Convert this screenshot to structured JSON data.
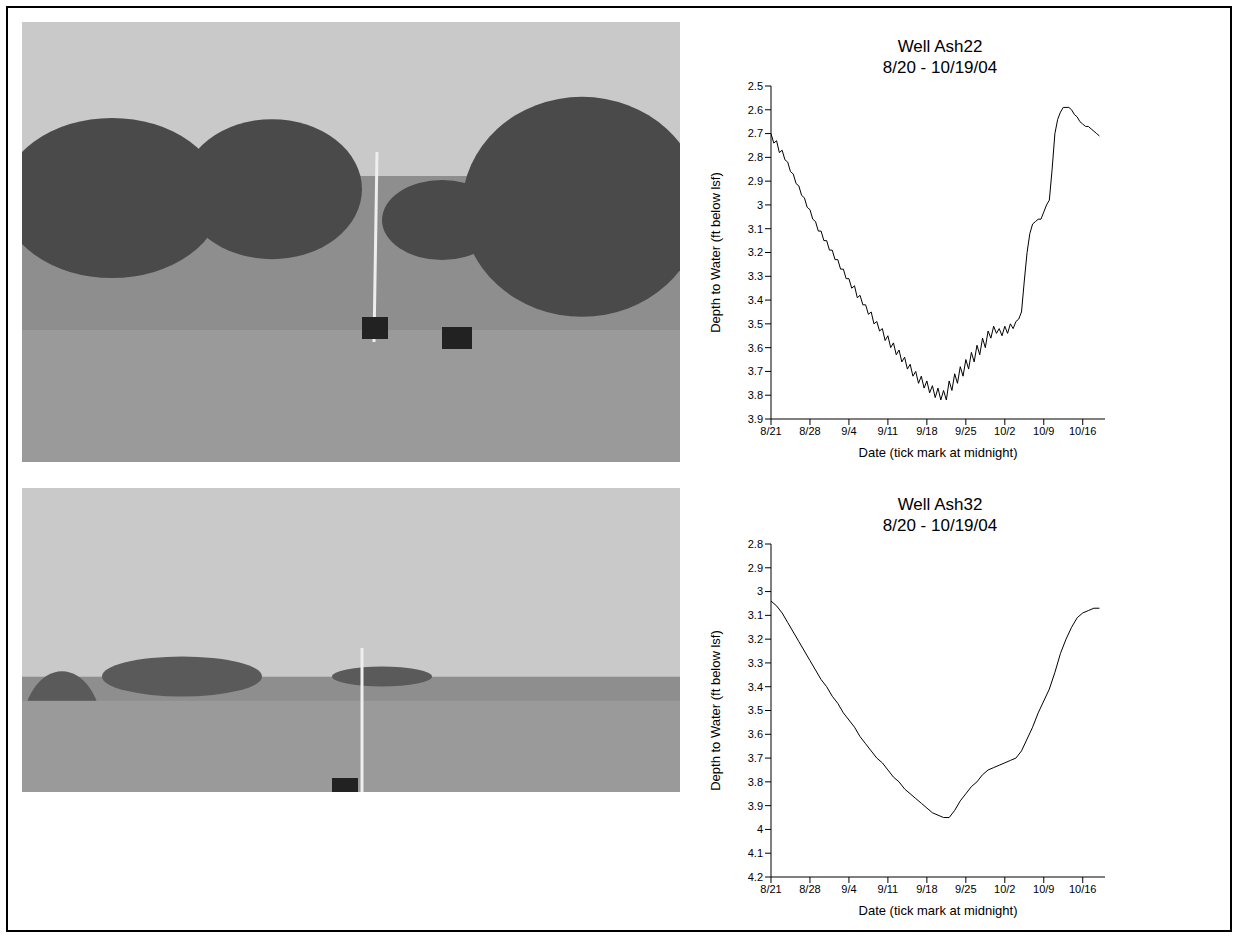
{
  "chart_data": [
    {
      "type": "line",
      "title": "Well Ash22",
      "subtitle": "8/20 - 10/19/04",
      "x_label": "Date (tick mark at midnight)",
      "y_label": "Depth to Water (ft below lsf)",
      "xlim": [
        1,
        61
      ],
      "xticks": [
        {
          "value": 1,
          "label": "8/21"
        },
        {
          "value": 8,
          "label": "8/28"
        },
        {
          "value": 15,
          "label": "9/4"
        },
        {
          "value": 22,
          "label": "9/11"
        },
        {
          "value": 29,
          "label": "9/18"
        },
        {
          "value": 36,
          "label": "9/25"
        },
        {
          "value": 43,
          "label": "10/2"
        },
        {
          "value": 50,
          "label": "10/9"
        },
        {
          "value": 57,
          "label": "10/16"
        }
      ],
      "ylim": [
        3.9,
        2.5
      ],
      "yticks": [
        2.5,
        2.6,
        2.7,
        2.8,
        2.9,
        3,
        3.1,
        3.2,
        3.3,
        3.4,
        3.5,
        3.6,
        3.7,
        3.8,
        3.9
      ],
      "x": [
        1,
        1.5,
        2,
        2.5,
        3,
        3.5,
        4,
        4.5,
        5,
        5.5,
        6,
        6.5,
        7,
        7.5,
        8,
        8.5,
        9,
        9.5,
        10,
        10.5,
        11,
        11.5,
        12,
        12.5,
        13,
        13.5,
        14,
        14.5,
        15,
        15.5,
        16,
        16.5,
        17,
        17.5,
        18,
        18.5,
        19,
        19.5,
        20,
        20.5,
        21,
        21.5,
        22,
        22.5,
        23,
        23.5,
        24,
        24.5,
        25,
        25.5,
        26,
        26.5,
        27,
        27.5,
        28,
        28.5,
        29,
        29.5,
        30,
        30.5,
        31,
        31.5,
        32,
        32.5,
        33,
        33.5,
        34,
        34.5,
        35,
        35.5,
        36,
        36.5,
        37,
        37.5,
        38,
        38.5,
        39,
        39.5,
        40,
        40.5,
        41,
        41.5,
        42,
        42.5,
        43,
        43.5,
        44,
        44.5,
        45,
        45.5,
        46,
        46.5,
        47,
        47.5,
        48,
        48.5,
        49,
        49.5,
        50,
        50.5,
        51,
        51.5,
        52,
        52.5,
        53,
        53.5,
        54,
        54.5,
        55,
        55.5,
        56,
        56.5,
        57,
        57.5,
        58,
        58.5,
        59,
        59.5,
        60
      ],
      "series": [
        {
          "color": "#000000",
          "values": [
            2.7,
            2.74,
            2.73,
            2.78,
            2.77,
            2.81,
            2.82,
            2.86,
            2.87,
            2.91,
            2.92,
            2.96,
            2.97,
            3.01,
            3.02,
            3.06,
            3.07,
            3.11,
            3.11,
            3.15,
            3.15,
            3.19,
            3.19,
            3.23,
            3.23,
            3.27,
            3.27,
            3.31,
            3.31,
            3.35,
            3.34,
            3.39,
            3.38,
            3.42,
            3.42,
            3.46,
            3.45,
            3.5,
            3.49,
            3.53,
            3.52,
            3.57,
            3.55,
            3.6,
            3.58,
            3.63,
            3.61,
            3.66,
            3.64,
            3.69,
            3.67,
            3.72,
            3.7,
            3.75,
            3.72,
            3.77,
            3.74,
            3.79,
            3.76,
            3.81,
            3.77,
            3.82,
            3.78,
            3.82,
            3.74,
            3.78,
            3.71,
            3.75,
            3.68,
            3.72,
            3.65,
            3.69,
            3.62,
            3.66,
            3.59,
            3.63,
            3.56,
            3.6,
            3.53,
            3.56,
            3.51,
            3.54,
            3.52,
            3.55,
            3.51,
            3.54,
            3.5,
            3.52,
            3.49,
            3.48,
            3.45,
            3.32,
            3.2,
            3.12,
            3.08,
            3.07,
            3.06,
            3.06,
            3.03,
            3.0,
            2.98,
            2.85,
            2.7,
            2.64,
            2.61,
            2.59,
            2.59,
            2.59,
            2.6,
            2.62,
            2.63,
            2.65,
            2.66,
            2.67,
            2.67,
            2.68,
            2.69,
            2.7,
            2.71
          ]
        }
      ]
    },
    {
      "type": "line",
      "title": "Well Ash32",
      "subtitle": "8/20 - 10/19/04",
      "x_label": "Date (tick mark at midnight)",
      "y_label": "Depth to Water (ft below lsf)",
      "xlim": [
        1,
        61
      ],
      "xticks": [
        {
          "value": 1,
          "label": "8/21"
        },
        {
          "value": 8,
          "label": "8/28"
        },
        {
          "value": 15,
          "label": "9/4"
        },
        {
          "value": 22,
          "label": "9/11"
        },
        {
          "value": 29,
          "label": "9/18"
        },
        {
          "value": 36,
          "label": "9/25"
        },
        {
          "value": 43,
          "label": "10/2"
        },
        {
          "value": 50,
          "label": "10/9"
        },
        {
          "value": 57,
          "label": "10/16"
        }
      ],
      "ylim": [
        4.2,
        2.8
      ],
      "yticks": [
        2.8,
        2.9,
        3,
        3.1,
        3.2,
        3.3,
        3.4,
        3.5,
        3.6,
        3.7,
        3.8,
        3.9,
        4,
        4.1,
        4.2
      ],
      "x": [
        1,
        2,
        3,
        4,
        5,
        6,
        7,
        8,
        9,
        10,
        11,
        12,
        13,
        14,
        15,
        16,
        17,
        18,
        19,
        20,
        21,
        22,
        23,
        24,
        25,
        26,
        27,
        28,
        29,
        30,
        31,
        32,
        33,
        34,
        35,
        36,
        37,
        38,
        39,
        40,
        41,
        42,
        43,
        44,
        45,
        46,
        47,
        48,
        49,
        50,
        51,
        52,
        53,
        54,
        55,
        56,
        57,
        58,
        59,
        60
      ],
      "series": [
        {
          "color": "#000000",
          "values": [
            3.04,
            3.06,
            3.09,
            3.13,
            3.17,
            3.21,
            3.25,
            3.29,
            3.33,
            3.37,
            3.4,
            3.44,
            3.47,
            3.51,
            3.54,
            3.57,
            3.61,
            3.64,
            3.67,
            3.7,
            3.72,
            3.75,
            3.78,
            3.8,
            3.83,
            3.85,
            3.87,
            3.89,
            3.91,
            3.93,
            3.94,
            3.95,
            3.95,
            3.92,
            3.88,
            3.85,
            3.82,
            3.8,
            3.77,
            3.75,
            3.74,
            3.73,
            3.72,
            3.71,
            3.7,
            3.67,
            3.62,
            3.57,
            3.51,
            3.46,
            3.41,
            3.34,
            3.26,
            3.2,
            3.15,
            3.11,
            3.09,
            3.08,
            3.07,
            3.07
          ]
        }
      ]
    }
  ]
}
